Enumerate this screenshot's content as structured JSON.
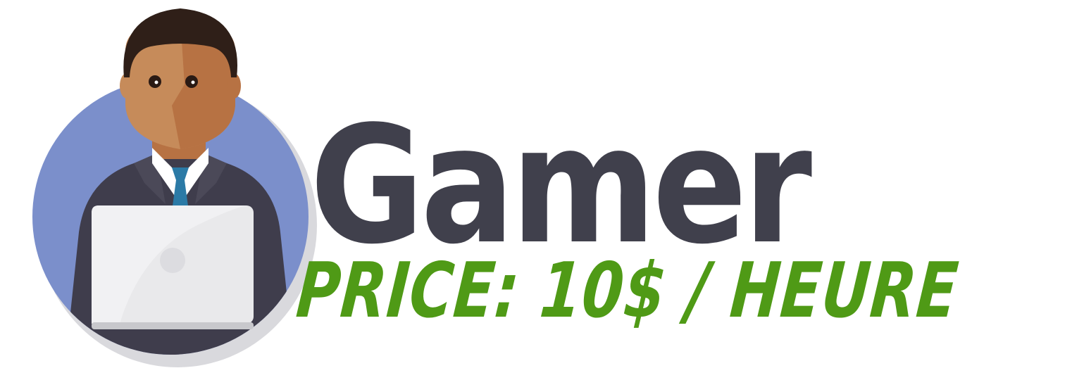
{
  "title": "Gamer",
  "price_text": "PRICE: 10$ / HEURE",
  "colors": {
    "title": "#40404c",
    "price": "#4f9a16",
    "circle": "#7b8fcb",
    "suit": "#3f3d4c",
    "skin_light": "#c68b5a",
    "skin_dark": "#b77243",
    "hair": "#2f1f18",
    "tie": "#2b7aa6",
    "laptop": "#e9e9eb"
  },
  "icons": {
    "avatar": "man-with-laptop-icon"
  }
}
